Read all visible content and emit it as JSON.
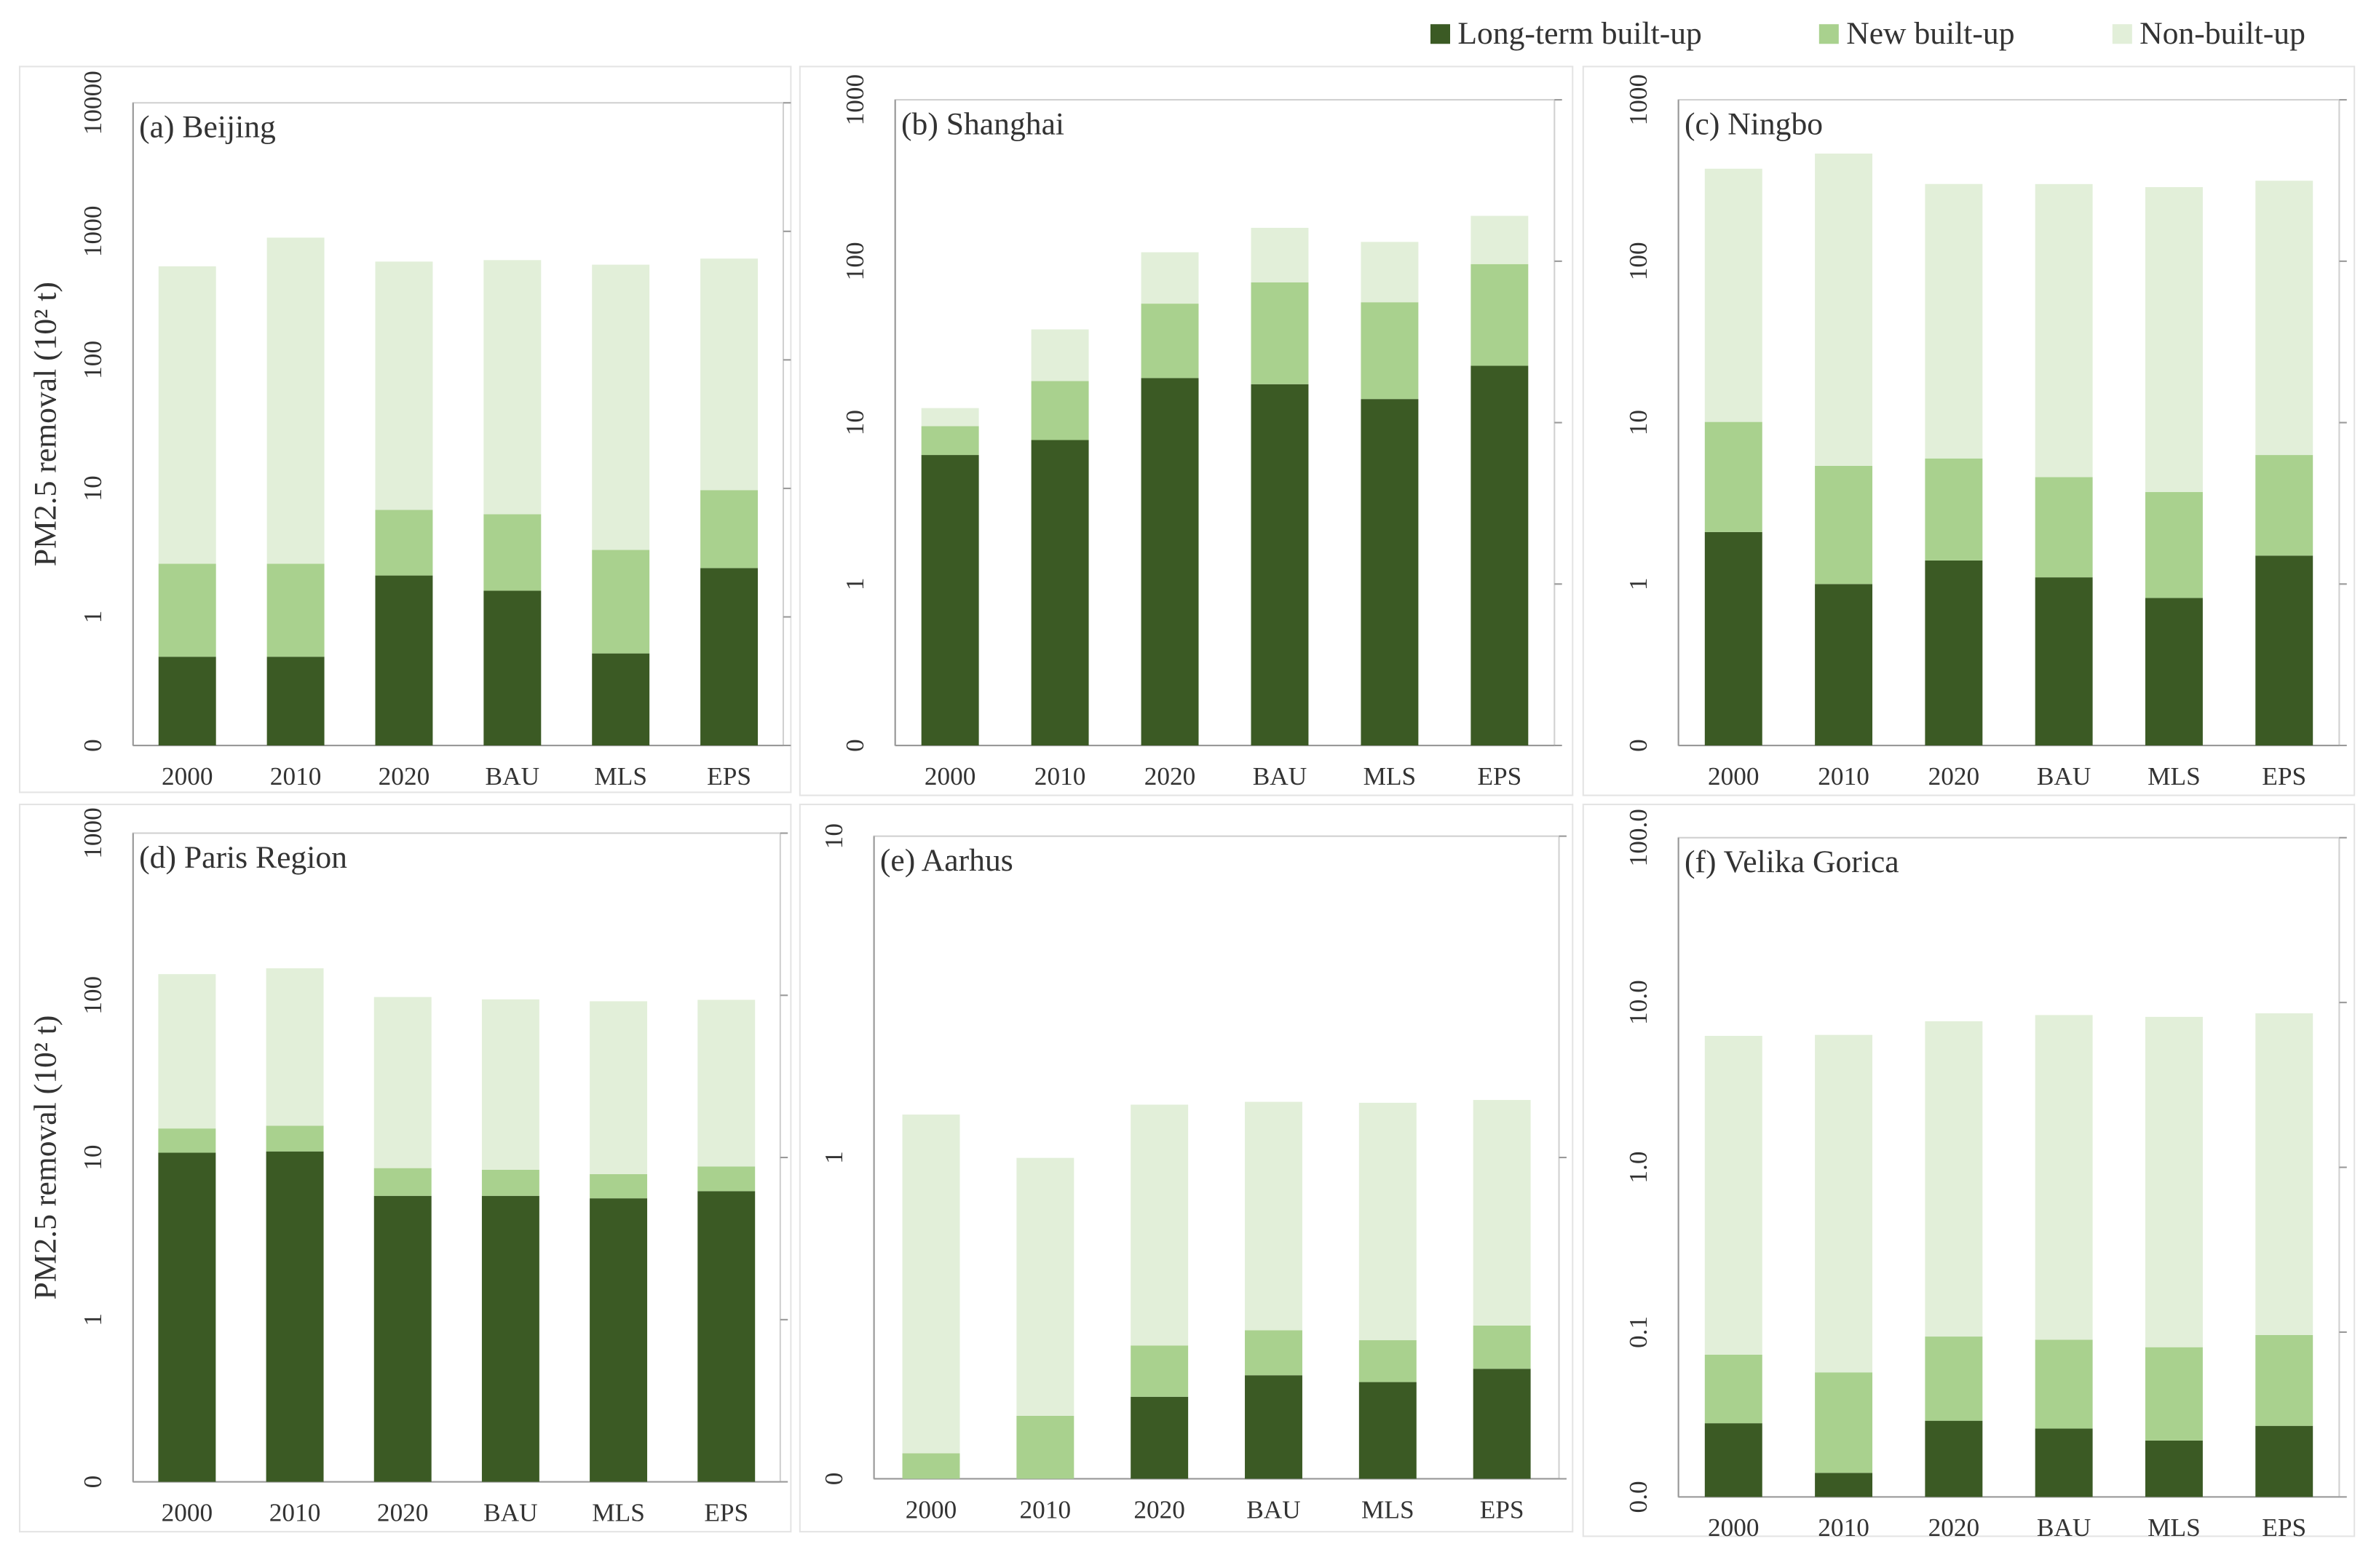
{
  "chart_data": [
    {
      "type": "bar",
      "stacked": true,
      "log_scale": true,
      "title": "(a) Beijing",
      "y_label": "PM2.5 removal (10² t)",
      "categories": [
        "2000",
        "2010",
        "2020",
        "BAU",
        "MLS",
        "EPS"
      ],
      "series": [
        {
          "name": "Long-term built-up",
          "color": "#3b5a24",
          "values": [
            0.49,
            0.49,
            2.1,
            1.6,
            0.52,
            2.4
          ]
        },
        {
          "name": "New built-up",
          "color": "#a9d18e",
          "values": [
            2.1,
            2.1,
            4.7,
            4.7,
            2.8,
            7.3
          ]
        },
        {
          "name": "Non-built-up",
          "color": "#e2efd9",
          "values": [
            532,
            891,
            575,
            591,
            547,
            604
          ]
        }
      ],
      "ylim": [
        0,
        10000
      ],
      "yticks": [
        0,
        1,
        10,
        100,
        1000,
        10000
      ]
    },
    {
      "type": "bar",
      "stacked": true,
      "log_scale": true,
      "title": "(b) Shanghai",
      "categories": [
        "2000",
        "2010",
        "2020",
        "BAU",
        "MLS",
        "EPS"
      ],
      "series": [
        {
          "name": "Long-term built-up",
          "color": "#3b5a24",
          "values": [
            6.3,
            7.8,
            18.9,
            17.3,
            14,
            22.5
          ]
        },
        {
          "name": "New built-up",
          "color": "#a9d18e",
          "values": [
            3.2,
            10.3,
            35.7,
            56.7,
            41.7,
            73.5
          ]
        },
        {
          "name": "Non-built-up",
          "color": "#e2efd9",
          "values": [
            2.8,
            19.7,
            59,
            87,
            76,
            95
          ]
        }
      ],
      "ylim": [
        0,
        1000
      ],
      "yticks": [
        0,
        1,
        10,
        100,
        1000
      ]
    },
    {
      "type": "bar",
      "stacked": true,
      "log_scale": true,
      "title": "(c) Ningbo",
      "categories": [
        "2000",
        "2010",
        "2020",
        "BAU",
        "MLS",
        "EPS"
      ],
      "series": [
        {
          "name": "Long-term built-up",
          "color": "#3b5a24",
          "values": [
            2.1,
            1.0,
            1.4,
            1.1,
            0.82,
            1.5
          ]
        },
        {
          "name": "New built-up",
          "color": "#a9d18e",
          "values": [
            8,
            4.4,
            4.6,
            3.5,
            2.9,
            4.8
          ]
        },
        {
          "name": "Non-built-up",
          "color": "#e2efd9",
          "values": [
            364,
            459,
            295,
            296,
            284,
            309
          ]
        }
      ],
      "ylim": [
        0,
        1000
      ],
      "yticks": [
        0,
        1,
        10,
        100,
        1000
      ]
    },
    {
      "type": "bar",
      "stacked": true,
      "log_scale": true,
      "title": "(d) Paris Region",
      "y_label": "PM2.5 removal (10² t)",
      "categories": [
        "2000",
        "2010",
        "2020",
        "BAU",
        "MLS",
        "EPS"
      ],
      "series": [
        {
          "name": "Long-term built-up",
          "color": "#3b5a24",
          "values": [
            10.7,
            10.9,
            5.8,
            5.8,
            5.6,
            6.2
          ]
        },
        {
          "name": "New built-up",
          "color": "#a9d18e",
          "values": [
            4.4,
            4.8,
            2.8,
            2.6,
            2.3,
            2.6
          ]
        },
        {
          "name": "Non-built-up",
          "color": "#e2efd9",
          "values": [
            120,
            131,
            89,
            86,
            84,
            85
          ]
        }
      ],
      "ylim": [
        0,
        1000
      ],
      "yticks": [
        0,
        1,
        10,
        100,
        1000
      ]
    },
    {
      "type": "bar",
      "stacked": true,
      "log_scale": true,
      "title": "(e) Aarhus",
      "categories": [
        "2000",
        "2010",
        "2020",
        "BAU",
        "MLS",
        "EPS"
      ],
      "series": [
        {
          "name": "Long-term built-up",
          "color": "#3b5a24",
          "values": [
            0,
            0,
            0.18,
            0.21,
            0.2,
            0.22
          ]
        },
        {
          "name": "New built-up",
          "color": "#a9d18e",
          "values": [
            0.12,
            0.157,
            0.08,
            0.08,
            0.07,
            0.08
          ]
        },
        {
          "name": "Non-built-up",
          "color": "#e2efd9",
          "values": [
            1.24,
            0.84,
            1.2,
            1.2,
            1.21,
            1.21
          ]
        }
      ],
      "ylim": [
        0,
        10
      ],
      "yticks": [
        0,
        1,
        10
      ]
    },
    {
      "type": "bar",
      "stacked": true,
      "log_scale": true,
      "title": "(f) Velika Gorica",
      "categories": [
        "2000",
        "2010",
        "2020",
        "BAU",
        "MLS",
        "EPS"
      ],
      "series": [
        {
          "name": "Long-term built-up",
          "color": "#3b5a24",
          "values": [
            0.028,
            0.014,
            0.029,
            0.026,
            0.022,
            0.027
          ]
        },
        {
          "name": "New built-up",
          "color": "#a9d18e",
          "values": [
            0.045,
            0.043,
            0.065,
            0.064,
            0.059,
            0.069
          ]
        },
        {
          "name": "Non-built-up",
          "color": "#e2efd9",
          "values": [
            6.2,
            6.3,
            7.6,
            8.3,
            8.1,
            8.5
          ]
        }
      ],
      "ylim": [
        0,
        100
      ],
      "yticks": [
        {
          "value": 0,
          "label": "0.0"
        },
        0.1,
        {
          "value": 1,
          "label": "1.0"
        },
        {
          "value": 10,
          "label": "10.0"
        },
        {
          "value": 100,
          "label": "100.0"
        }
      ]
    }
  ]
}
